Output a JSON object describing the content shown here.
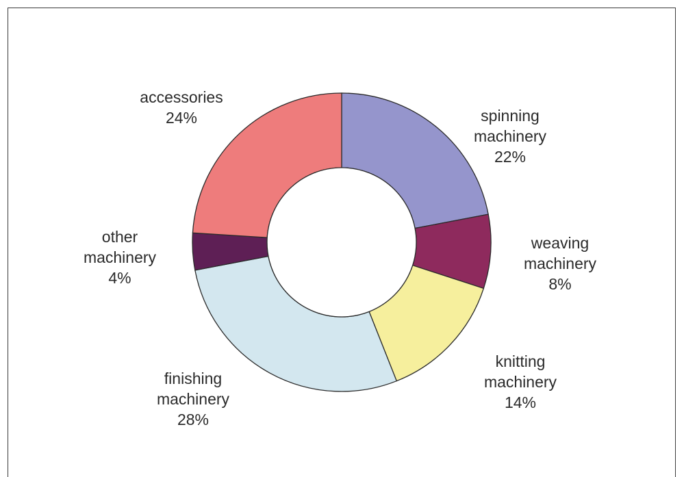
{
  "chart_data": {
    "type": "pie",
    "donut": true,
    "slices": [
      {
        "label_lines": [
          "spinning",
          "machinery"
        ],
        "value": 22,
        "value_label": "22%",
        "color": "#9595cc"
      },
      {
        "label_lines": [
          "weaving",
          "machinery"
        ],
        "value": 8,
        "value_label": "8%",
        "color": "#8e2a5d"
      },
      {
        "label_lines": [
          "knitting",
          "machinery"
        ],
        "value": 14,
        "value_label": "14%",
        "color": "#f6ef9d"
      },
      {
        "label_lines": [
          "finishing",
          "machinery"
        ],
        "value": 28,
        "value_label": "28%",
        "color": "#d3e7ef"
      },
      {
        "label_lines": [
          "other",
          "machinery"
        ],
        "value": 4,
        "value_label": "4%",
        "color": "#5e1f55"
      },
      {
        "label_lines": [
          "accessories"
        ],
        "value": 24,
        "value_label": "24%",
        "color": "#ee7c7c"
      }
    ],
    "start_angle_deg": 0,
    "direction": "clockwise",
    "legend": "none",
    "stroke_color": "#2b2b2b"
  }
}
